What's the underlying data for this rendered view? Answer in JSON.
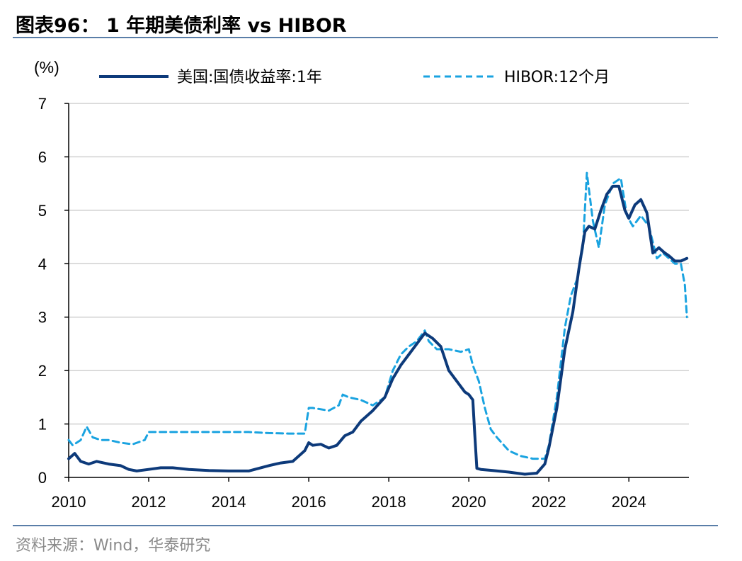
{
  "header": {
    "title": "图表96： 1 年期美债利率 vs HIBOR"
  },
  "footer": {
    "source": "资料来源：Wind，华泰研究"
  },
  "colors": {
    "us_treasury": "#0d3a7a",
    "hibor": "#1aa3e0",
    "grid": "#d0d0d0",
    "rule": "#5a7ea8"
  },
  "chart_data": {
    "type": "line",
    "title": "1 年期美债利率 vs HIBOR",
    "ylabel": "(%)",
    "xlabel": "",
    "xlim": [
      2010,
      2025.5
    ],
    "ylim": [
      0,
      7
    ],
    "x_ticks": [
      "2010",
      "2012",
      "2014",
      "2016",
      "2018",
      "2020",
      "2022",
      "2024"
    ],
    "y_ticks": [
      "0",
      "1",
      "2",
      "3",
      "4",
      "5",
      "6",
      "7"
    ],
    "grid": "horizontal",
    "legend_position": "top",
    "series": [
      {
        "name": "美国:国债收益率:1年",
        "style": "solid",
        "x": [
          2010.0,
          2010.15,
          2010.3,
          2010.5,
          2010.7,
          2011.0,
          2011.3,
          2011.5,
          2011.7,
          2012.0,
          2012.3,
          2012.6,
          2013.0,
          2013.5,
          2014.0,
          2014.5,
          2015.0,
          2015.3,
          2015.6,
          2015.9,
          2016.0,
          2016.1,
          2016.3,
          2016.5,
          2016.7,
          2016.9,
          2017.1,
          2017.3,
          2017.6,
          2017.9,
          2018.1,
          2018.3,
          2018.5,
          2018.7,
          2018.9,
          2019.1,
          2019.3,
          2019.5,
          2019.7,
          2019.9,
          2020.0,
          2020.1,
          2020.15,
          2020.2,
          2020.3,
          2020.6,
          2021.0,
          2021.4,
          2021.7,
          2021.9,
          2022.0,
          2022.2,
          2022.4,
          2022.6,
          2022.75,
          2022.9,
          2023.0,
          2023.15,
          2023.3,
          2023.45,
          2023.6,
          2023.75,
          2023.9,
          2024.0,
          2024.15,
          2024.3,
          2024.45,
          2024.6,
          2024.75,
          2024.9,
          2025.0,
          2025.15,
          2025.3,
          2025.45
        ],
        "y": [
          0.35,
          0.45,
          0.3,
          0.25,
          0.3,
          0.25,
          0.22,
          0.15,
          0.12,
          0.15,
          0.18,
          0.18,
          0.15,
          0.13,
          0.12,
          0.12,
          0.22,
          0.27,
          0.3,
          0.5,
          0.65,
          0.6,
          0.62,
          0.55,
          0.6,
          0.78,
          0.85,
          1.05,
          1.25,
          1.5,
          1.85,
          2.1,
          2.3,
          2.5,
          2.7,
          2.6,
          2.45,
          2.0,
          1.8,
          1.6,
          1.55,
          1.45,
          0.8,
          0.17,
          0.15,
          0.13,
          0.1,
          0.06,
          0.08,
          0.25,
          0.55,
          1.3,
          2.4,
          3.1,
          3.9,
          4.6,
          4.7,
          4.65,
          5.0,
          5.3,
          5.45,
          5.45,
          5.0,
          4.85,
          5.1,
          5.2,
          4.95,
          4.2,
          4.3,
          4.2,
          4.15,
          4.05,
          4.05,
          4.1
        ]
      },
      {
        "name": "HIBOR:12个月",
        "style": "dashed",
        "x": [
          2010.0,
          2010.1,
          2010.3,
          2010.45,
          2010.6,
          2010.8,
          2011.0,
          2011.3,
          2011.6,
          2011.9,
          2012.0,
          2012.5,
          2013.0,
          2013.5,
          2014.0,
          2014.5,
          2015.0,
          2015.5,
          2015.9,
          2016.0,
          2016.1,
          2016.5,
          2016.75,
          2016.85,
          2017.0,
          2017.3,
          2017.6,
          2017.9,
          2018.1,
          2018.3,
          2018.5,
          2018.7,
          2018.9,
          2019.0,
          2019.2,
          2019.5,
          2019.8,
          2020.0,
          2020.1,
          2020.25,
          2020.4,
          2020.55,
          2020.7,
          2021.0,
          2021.3,
          2021.6,
          2021.9,
          2022.0,
          2022.2,
          2022.4,
          2022.55,
          2022.7,
          2022.85,
          2022.95,
          2023.1,
          2023.25,
          2023.4,
          2023.6,
          2023.8,
          2023.95,
          2024.1,
          2024.3,
          2024.5,
          2024.7,
          2024.85,
          2025.0,
          2025.15,
          2025.3,
          2025.4,
          2025.45
        ],
        "y": [
          0.7,
          0.6,
          0.7,
          0.95,
          0.75,
          0.7,
          0.7,
          0.65,
          0.62,
          0.7,
          0.85,
          0.85,
          0.85,
          0.85,
          0.85,
          0.85,
          0.83,
          0.82,
          0.82,
          1.3,
          1.3,
          1.25,
          1.35,
          1.55,
          1.5,
          1.45,
          1.35,
          1.5,
          2.0,
          2.3,
          2.45,
          2.55,
          2.75,
          2.55,
          2.4,
          2.4,
          2.35,
          2.4,
          2.1,
          1.8,
          1.3,
          0.9,
          0.75,
          0.5,
          0.4,
          0.35,
          0.35,
          0.6,
          1.5,
          2.8,
          3.4,
          3.7,
          4.3,
          5.7,
          4.8,
          4.3,
          5.1,
          5.5,
          5.6,
          4.9,
          4.7,
          4.9,
          4.7,
          4.1,
          4.2,
          4.1,
          4.0,
          4.0,
          3.6,
          3.0
        ]
      }
    ]
  }
}
